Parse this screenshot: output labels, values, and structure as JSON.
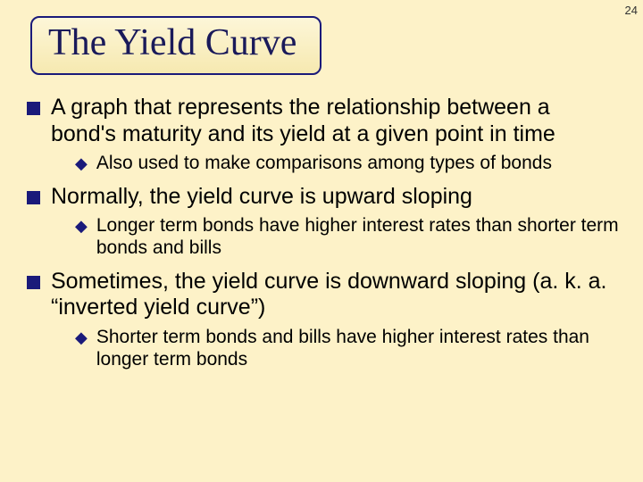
{
  "page_number": "24",
  "title": "The Yield Curve",
  "colors": {
    "background": "#fdf2c8",
    "title_border": "#1a1a7a",
    "title_text": "#1a1a5a",
    "bullet_square": "#1a1a7a",
    "sub_bullet": "#1a1a7a",
    "body_text": "#000000"
  },
  "bullets": {
    "b1": "A graph that represents the relationship between a bond's maturity and its yield at a given point in time",
    "b1_sub1": "Also used to make comparisons among types of bonds",
    "b2": "Normally, the yield curve is upward sloping",
    "b2_sub1": "Longer term bonds have higher interest rates than shorter term bonds and bills",
    "b3": "Sometimes, the yield curve is downward sloping (a. k. a. “inverted yield curve”)",
    "b3_sub1": "Shorter term bonds and bills have higher interest rates than longer term bonds"
  },
  "sub_bullet_glyph": "◆"
}
